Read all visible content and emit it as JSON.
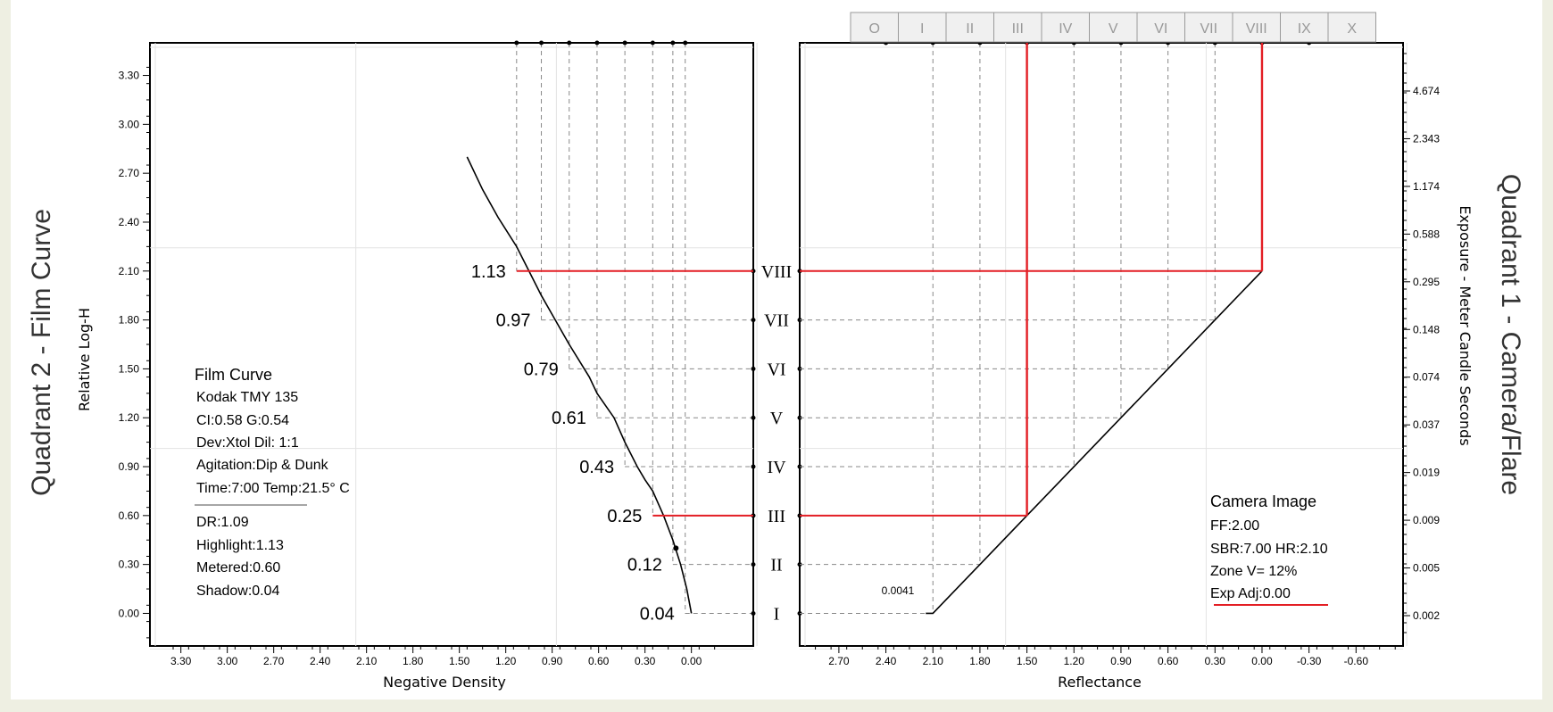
{
  "colors": {
    "background": "#eeefe2",
    "panel": "#ffffff",
    "grid": "#e3e3e3",
    "dashed": "#888888",
    "red": "#e31e24",
    "curve": "#000000"
  },
  "zone_tabs": [
    "O",
    "I",
    "II",
    "III",
    "IV",
    "V",
    "VI",
    "VII",
    "VIII",
    "IX",
    "X"
  ],
  "quadrant2": {
    "title": "Quadrant 2 - Film Curve",
    "ylabel": "Relative Log-H",
    "xlabel": "Negative Density",
    "x_ticks": [
      "3.30",
      "3.00",
      "2.70",
      "2.40",
      "2.10",
      "1.80",
      "1.50",
      "1.20",
      "0.90",
      "0.60",
      "0.30",
      "0.00"
    ],
    "y_ticks": [
      "3.30",
      "3.00",
      "2.70",
      "2.40",
      "2.10",
      "1.80",
      "1.50",
      "1.20",
      "0.90",
      "0.60",
      "0.30",
      "0.00"
    ],
    "film_info": {
      "title": "Film Curve",
      "film": "Kodak TMY 135",
      "ci_g": "CI:0.58  G:0.54",
      "dev": "Dev:Xtol  Dil: 1:1",
      "agitation": "Agitation:Dip & Dunk",
      "time_temp": "Time:7:00  Temp:21.5° C",
      "dr": "DR:1.09",
      "highlight": "Highlight:1.13",
      "metered": "Metered:0.60",
      "shadow": "Shadow:0.04"
    }
  },
  "quadrant1": {
    "title": "Quadrant 1 - Camera/Flare",
    "ylabel": "Exposure - Meter Candle Seconds",
    "xlabel": "Reflectance",
    "x_ticks": [
      "2.70",
      "2.40",
      "2.10",
      "1.80",
      "1.50",
      "1.20",
      "0.90",
      "0.60",
      "0.30",
      "0.00",
      "-0.30",
      "-0.60"
    ],
    "y_ticks": [
      "4.674",
      "2.343",
      "1.174",
      "0.588",
      "0.295",
      "0.148",
      "0.074",
      "0.037",
      "0.019",
      "0.009",
      "0.005",
      "0.002"
    ],
    "min_label": "0.0041",
    "camera_info": {
      "title": "Camera Image",
      "ff": "FF:2.00",
      "sbr_hr": "SBR:7.00  HR:2.10",
      "zone_v": "Zone V= 12%",
      "exp_adj": "Exp Adj:0.00"
    }
  },
  "chart_data": {
    "type": "line",
    "film_curve": {
      "xlabel": "Negative Density",
      "ylabel": "Relative Log-H",
      "xlim": [
        3.5,
        -0.4
      ],
      "ylim": [
        -0.2,
        3.5
      ],
      "x": [
        0.0,
        0.03,
        0.07,
        0.12,
        0.18,
        0.25,
        0.3,
        0.35,
        0.43,
        0.5,
        0.61,
        0.66,
        0.79,
        0.88,
        0.97,
        1.05,
        1.13,
        1.25,
        1.35,
        1.45
      ],
      "y": [
        0.0,
        0.15,
        0.3,
        0.45,
        0.6,
        0.75,
        0.82,
        0.9,
        1.05,
        1.2,
        1.35,
        1.45,
        1.65,
        1.8,
        1.95,
        2.1,
        2.25,
        2.43,
        2.6,
        2.8
      ]
    },
    "camera_curve": {
      "xlabel": "Reflectance",
      "ylabel": "Exposure - Meter Candle Seconds",
      "xlim": [
        2.95,
        -0.9
      ],
      "x": [
        2.1,
        1.8,
        1.5,
        1.2,
        0.9,
        0.6,
        0.3,
        0.0
      ],
      "zone": [
        "I",
        "II",
        "III",
        "IV",
        "V",
        "VI",
        "VII",
        "VIII"
      ]
    },
    "zones": [
      {
        "zone": "I",
        "density": "0.04"
      },
      {
        "zone": "II",
        "density": "0.12"
      },
      {
        "zone": "III",
        "density": "0.25"
      },
      {
        "zone": "IV",
        "density": "0.43"
      },
      {
        "zone": "V",
        "density": "0.61"
      },
      {
        "zone": "VI",
        "density": "0.79"
      },
      {
        "zone": "VII",
        "density": "0.97"
      },
      {
        "zone": "VIII",
        "density": "1.13"
      }
    ],
    "highlighted_zones": [
      "III",
      "VIII"
    ]
  }
}
